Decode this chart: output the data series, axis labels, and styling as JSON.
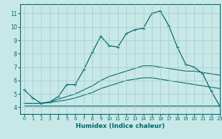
{
  "xlabel": "Humidex (Indice chaleur)",
  "bg_color": "#c8e8e8",
  "grid_color": "#a0c8c8",
  "line_color": "#006666",
  "xlim": [
    -0.5,
    23
  ],
  "ylim": [
    3.5,
    11.7
  ],
  "xticks": [
    0,
    1,
    2,
    3,
    4,
    5,
    6,
    7,
    8,
    9,
    10,
    11,
    12,
    13,
    14,
    15,
    16,
    17,
    18,
    19,
    20,
    21,
    22,
    23
  ],
  "yticks": [
    4,
    5,
    6,
    7,
    8,
    9,
    10,
    11
  ],
  "series": [
    {
      "x": [
        0,
        1,
        2,
        3,
        4,
        5,
        6,
        7,
        8,
        9,
        10,
        11,
        12,
        13,
        14,
        15,
        16,
        17,
        18,
        19,
        20,
        21,
        22,
        23
      ],
      "y": [
        5.3,
        4.7,
        4.3,
        4.4,
        4.8,
        5.7,
        5.7,
        6.8,
        8.1,
        9.3,
        8.6,
        8.5,
        9.5,
        9.8,
        9.9,
        11.0,
        11.2,
        10.1,
        8.5,
        7.2,
        7.0,
        6.5,
        5.2,
        4.1
      ],
      "marker": "+"
    },
    {
      "x": [
        0,
        2,
        3,
        4,
        5,
        6,
        7,
        8,
        9,
        10,
        11,
        12,
        13,
        14,
        15,
        16,
        17,
        18,
        19,
        20,
        21,
        22,
        23
      ],
      "y": [
        4.3,
        4.3,
        4.4,
        4.6,
        4.8,
        5.0,
        5.3,
        5.6,
        6.0,
        6.3,
        6.5,
        6.7,
        6.9,
        7.1,
        7.1,
        7.0,
        6.9,
        6.8,
        6.7,
        6.7,
        6.6,
        6.5,
        6.4
      ],
      "marker": null
    },
    {
      "x": [
        0,
        2,
        3,
        4,
        5,
        6,
        7,
        8,
        9,
        10,
        11,
        12,
        13,
        14,
        15,
        16,
        17,
        18,
        19,
        20,
        21,
        22,
        23
      ],
      "y": [
        4.3,
        4.3,
        4.35,
        4.45,
        4.55,
        4.7,
        4.9,
        5.1,
        5.4,
        5.6,
        5.8,
        6.0,
        6.1,
        6.2,
        6.2,
        6.1,
        6.0,
        5.9,
        5.8,
        5.7,
        5.6,
        5.5,
        5.4
      ],
      "marker": null
    },
    {
      "x": [
        0,
        2,
        23
      ],
      "y": [
        4.1,
        4.1,
        4.1
      ],
      "marker": null
    }
  ]
}
